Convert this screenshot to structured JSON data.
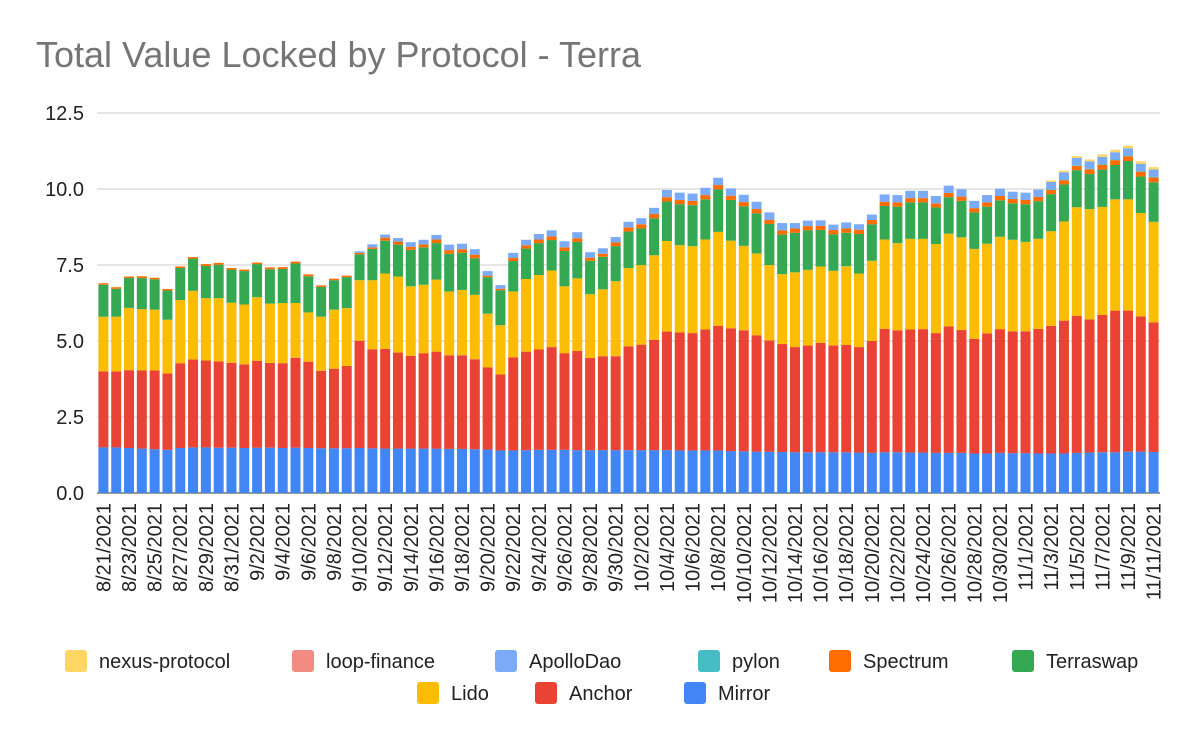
{
  "chart_data": {
    "type": "bar",
    "stacked": true,
    "title": "Total Value Locked by Protocol - Terra",
    "xlabel": "",
    "ylabel": "",
    "ylim": [
      0,
      12.5
    ],
    "yticks": [
      "0.0",
      "2.5",
      "5.0",
      "7.5",
      "10.0",
      "12.5"
    ],
    "grid": true,
    "legend_position": "bottom",
    "categories": [
      "8/21/2021",
      "8/22/2021",
      "8/23/2021",
      "8/24/2021",
      "8/25/2021",
      "8/26/2021",
      "8/27/2021",
      "8/28/2021",
      "8/29/2021",
      "8/30/2021",
      "8/31/2021",
      "9/1/2021",
      "9/2/2021",
      "9/3/2021",
      "9/4/2021",
      "9/5/2021",
      "9/6/2021",
      "9/7/2021",
      "9/8/2021",
      "9/9/2021",
      "9/10/2021",
      "9/11/2021",
      "9/12/2021",
      "9/13/2021",
      "9/14/2021",
      "9/15/2021",
      "9/16/2021",
      "9/17/2021",
      "9/18/2021",
      "9/19/2021",
      "9/20/2021",
      "9/21/2021",
      "9/22/2021",
      "9/23/2021",
      "9/24/2021",
      "9/25/2021",
      "9/26/2021",
      "9/27/2021",
      "9/28/2021",
      "9/29/2021",
      "9/30/2021",
      "10/1/2021",
      "10/2/2021",
      "10/3/2021",
      "10/4/2021",
      "10/5/2021",
      "10/6/2021",
      "10/7/2021",
      "10/8/2021",
      "10/9/2021",
      "10/10/2021",
      "10/11/2021",
      "10/12/2021",
      "10/13/2021",
      "10/14/2021",
      "10/15/2021",
      "10/16/2021",
      "10/17/2021",
      "10/18/2021",
      "10/19/2021",
      "10/20/2021",
      "10/21/2021",
      "10/22/2021",
      "10/23/2021",
      "10/24/2021",
      "10/25/2021",
      "10/26/2021",
      "10/27/2021",
      "10/28/2021",
      "10/29/2021",
      "10/30/2021",
      "10/31/2021",
      "11/1/2021",
      "11/2/2021",
      "11/3/2021",
      "11/4/2021",
      "11/5/2021",
      "11/6/2021",
      "11/7/2021",
      "11/8/2021",
      "11/9/2021",
      "11/10/2021",
      "11/11/2021"
    ],
    "tick_labels": [
      "8/21/2021",
      "8/23/2021",
      "8/25/2021",
      "8/27/2021",
      "8/29/2021",
      "8/31/2021",
      "9/2/2021",
      "9/4/2021",
      "9/6/2021",
      "9/8/2021",
      "9/10/2021",
      "9/12/2021",
      "9/14/2021",
      "9/16/2021",
      "9/18/2021",
      "9/20/2021",
      "9/22/2021",
      "9/24/2021",
      "9/26/2021",
      "9/28/2021",
      "9/30/2021",
      "10/2/2021",
      "10/4/2021",
      "10/6/2021",
      "10/8/2021",
      "10/10/2021",
      "10/12/2021",
      "10/14/2021",
      "10/16/2021",
      "10/18/2021",
      "10/20/2021",
      "10/22/2021",
      "10/24/2021",
      "10/26/2021",
      "10/28/2021",
      "10/30/2021",
      "11/1/2021",
      "11/3/2021",
      "11/5/2021",
      "11/7/2021",
      "11/9/2021",
      "11/11/2021"
    ],
    "series": [
      {
        "name": "Mirror",
        "color": "#4285f4",
        "values": [
          1.5,
          1.5,
          1.48,
          1.46,
          1.44,
          1.42,
          1.48,
          1.5,
          1.5,
          1.49,
          1.49,
          1.48,
          1.49,
          1.49,
          1.48,
          1.49,
          1.48,
          1.47,
          1.47,
          1.47,
          1.48,
          1.47,
          1.46,
          1.46,
          1.46,
          1.46,
          1.46,
          1.45,
          1.45,
          1.44,
          1.43,
          1.4,
          1.4,
          1.41,
          1.42,
          1.42,
          1.42,
          1.41,
          1.41,
          1.41,
          1.41,
          1.41,
          1.41,
          1.41,
          1.41,
          1.4,
          1.4,
          1.4,
          1.4,
          1.38,
          1.37,
          1.36,
          1.36,
          1.35,
          1.34,
          1.34,
          1.34,
          1.34,
          1.34,
          1.33,
          1.32,
          1.34,
          1.34,
          1.33,
          1.33,
          1.32,
          1.32,
          1.32,
          1.3,
          1.3,
          1.32,
          1.31,
          1.31,
          1.3,
          1.3,
          1.3,
          1.32,
          1.33,
          1.34,
          1.34,
          1.36,
          1.36,
          1.35
        ]
      },
      {
        "name": "Anchor",
        "color": "#ea4335",
        "values": [
          2.5,
          2.5,
          2.56,
          2.57,
          2.59,
          2.51,
          2.79,
          2.89,
          2.86,
          2.84,
          2.79,
          2.75,
          2.86,
          2.79,
          2.79,
          2.96,
          2.84,
          2.55,
          2.62,
          2.71,
          3.53,
          3.26,
          3.28,
          3.16,
          3.05,
          3.14,
          3.19,
          3.08,
          3.08,
          2.96,
          2.7,
          2.5,
          3.06,
          3.24,
          3.3,
          3.38,
          3.18,
          3.26,
          3.03,
          3.09,
          3.09,
          3.41,
          3.47,
          3.63,
          3.9,
          3.88,
          3.86,
          3.98,
          4.1,
          4.04,
          3.98,
          3.83,
          3.66,
          3.55,
          3.46,
          3.51,
          3.6,
          3.51,
          3.53,
          3.47,
          3.68,
          4.06,
          4.01,
          4.05,
          4.06,
          3.94,
          4.16,
          4.04,
          3.77,
          3.95,
          4.07,
          4.01,
          4.01,
          4.1,
          4.2,
          4.37,
          4.51,
          4.38,
          4.52,
          4.66,
          4.64,
          4.45,
          4.26
        ]
      },
      {
        "name": "Lido",
        "color": "#fbbc04",
        "values": [
          1.8,
          1.8,
          2.05,
          2.02,
          2.0,
          1.77,
          2.08,
          2.26,
          2.05,
          2.08,
          1.98,
          1.97,
          2.09,
          1.95,
          1.98,
          1.8,
          1.62,
          1.78,
          1.94,
          1.9,
          1.99,
          2.27,
          2.48,
          2.5,
          2.29,
          2.25,
          2.37,
          2.1,
          2.15,
          2.12,
          1.77,
          1.62,
          2.17,
          2.39,
          2.45,
          2.52,
          2.2,
          2.39,
          2.1,
          2.2,
          2.47,
          2.58,
          2.62,
          2.78,
          2.98,
          2.87,
          2.86,
          2.96,
          3.09,
          2.88,
          2.78,
          2.69,
          2.48,
          2.3,
          2.46,
          2.49,
          2.51,
          2.46,
          2.59,
          2.42,
          2.64,
          2.94,
          2.87,
          2.98,
          2.97,
          2.93,
          3.05,
          3.05,
          2.96,
          2.95,
          3.04,
          3.01,
          2.94,
          2.96,
          3.11,
          3.26,
          3.57,
          3.63,
          3.55,
          3.66,
          3.66,
          3.4,
          3.31
        ]
      },
      {
        "name": "Terraswap",
        "color": "#34a853",
        "values": [
          1.05,
          0.92,
          0.98,
          1.02,
          1.0,
          0.96,
          1.05,
          1.06,
          1.06,
          1.1,
          1.09,
          1.1,
          1.09,
          1.13,
          1.12,
          1.3,
          1.19,
          0.98,
          0.97,
          1.02,
          0.85,
          1.03,
          1.08,
          1.05,
          1.2,
          1.23,
          1.2,
          1.24,
          1.22,
          1.2,
          1.2,
          1.15,
          1.0,
          1.0,
          1.05,
          1.0,
          1.16,
          1.2,
          1.1,
          1.07,
          1.15,
          1.2,
          1.2,
          1.22,
          1.3,
          1.35,
          1.35,
          1.32,
          1.4,
          1.34,
          1.3,
          1.32,
          1.35,
          1.3,
          1.3,
          1.3,
          1.2,
          1.2,
          1.1,
          1.3,
          1.2,
          1.1,
          1.2,
          1.2,
          1.2,
          1.2,
          1.2,
          1.2,
          1.2,
          1.22,
          1.2,
          1.2,
          1.24,
          1.24,
          1.22,
          1.22,
          1.22,
          1.15,
          1.23,
          1.13,
          1.26,
          1.2,
          1.3
        ]
      },
      {
        "name": "Spectrum",
        "color": "#ff6d01",
        "values": [
          0.05,
          0.05,
          0.05,
          0.06,
          0.05,
          0.05,
          0.05,
          0.05,
          0.06,
          0.06,
          0.05,
          0.05,
          0.05,
          0.06,
          0.06,
          0.06,
          0.06,
          0.05,
          0.05,
          0.05,
          0.05,
          0.05,
          0.1,
          0.1,
          0.1,
          0.1,
          0.12,
          0.12,
          0.12,
          0.12,
          0.05,
          0.05,
          0.1,
          0.11,
          0.12,
          0.12,
          0.12,
          0.12,
          0.1,
          0.1,
          0.12,
          0.14,
          0.14,
          0.14,
          0.14,
          0.14,
          0.14,
          0.14,
          0.14,
          0.14,
          0.14,
          0.14,
          0.14,
          0.14,
          0.14,
          0.14,
          0.14,
          0.14,
          0.14,
          0.14,
          0.14,
          0.14,
          0.14,
          0.14,
          0.14,
          0.14,
          0.14,
          0.14,
          0.14,
          0.14,
          0.14,
          0.14,
          0.14,
          0.14,
          0.14,
          0.14,
          0.14,
          0.16,
          0.16,
          0.16,
          0.16,
          0.16,
          0.16
        ]
      },
      {
        "name": "pylon",
        "color": "#46bdc6",
        "values": [
          0,
          0,
          0,
          0,
          0,
          0,
          0,
          0,
          0,
          0,
          0,
          0,
          0,
          0,
          0,
          0,
          0,
          0,
          0,
          0,
          0,
          0,
          0,
          0,
          0,
          0,
          0,
          0,
          0,
          0,
          0,
          0,
          0,
          0,
          0,
          0,
          0,
          0,
          0,
          0,
          0,
          0,
          0,
          0,
          0,
          0,
          0,
          0,
          0,
          0,
          0,
          0,
          0,
          0,
          0,
          0,
          0,
          0,
          0,
          0,
          0,
          0,
          0,
          0,
          0,
          0,
          0,
          0,
          0,
          0,
          0,
          0,
          0,
          0,
          0.02,
          0.02,
          0.02,
          0.02,
          0.02,
          0.02,
          0.02,
          0.02,
          0.02
        ]
      },
      {
        "name": "ApolloDao",
        "color": "#7baaf7",
        "values": [
          0,
          0,
          0,
          0,
          0,
          0,
          0,
          0,
          0,
          0,
          0,
          0,
          0,
          0,
          0,
          0,
          0,
          0,
          0,
          0,
          0.05,
          0.1,
          0.1,
          0.12,
          0.15,
          0.15,
          0.15,
          0.18,
          0.18,
          0.18,
          0.15,
          0.12,
          0.17,
          0.18,
          0.18,
          0.2,
          0.2,
          0.2,
          0.18,
          0.18,
          0.18,
          0.18,
          0.2,
          0.2,
          0.24,
          0.24,
          0.24,
          0.24,
          0.24,
          0.24,
          0.24,
          0.24,
          0.24,
          0.24,
          0.18,
          0.18,
          0.18,
          0.18,
          0.2,
          0.18,
          0.18,
          0.24,
          0.24,
          0.24,
          0.24,
          0.24,
          0.24,
          0.24,
          0.24,
          0.24,
          0.24,
          0.24,
          0.24,
          0.24,
          0.24,
          0.24,
          0.24,
          0.24,
          0.24,
          0.24,
          0.24,
          0.24,
          0.24
        ]
      },
      {
        "name": "loop-finance",
        "color": "#f28b82",
        "values": [
          0,
          0,
          0,
          0,
          0,
          0,
          0,
          0,
          0,
          0,
          0,
          0,
          0,
          0,
          0,
          0,
          0,
          0,
          0,
          0,
          0,
          0,
          0,
          0,
          0,
          0,
          0,
          0,
          0,
          0,
          0,
          0,
          0,
          0,
          0,
          0,
          0,
          0,
          0,
          0,
          0,
          0,
          0,
          0,
          0,
          0,
          0,
          0,
          0,
          0,
          0,
          0,
          0,
          0,
          0,
          0,
          0,
          0,
          0,
          0,
          0,
          0,
          0,
          0,
          0,
          0,
          0,
          0,
          0,
          0,
          0,
          0,
          0,
          0,
          0,
          0,
          0,
          0,
          0,
          0,
          0,
          0,
          0
        ]
      },
      {
        "name": "nexus-protocol",
        "color": "#fdd663",
        "values": [
          0,
          0,
          0,
          0,
          0,
          0,
          0,
          0,
          0,
          0,
          0,
          0,
          0,
          0,
          0,
          0,
          0,
          0,
          0,
          0,
          0,
          0,
          0,
          0,
          0,
          0,
          0,
          0,
          0,
          0,
          0,
          0,
          0,
          0,
          0,
          0,
          0,
          0,
          0,
          0,
          0,
          0,
          0,
          0,
          0,
          0,
          0,
          0,
          0,
          0,
          0,
          0,
          0,
          0,
          0,
          0,
          0,
          0,
          0,
          0,
          0,
          0,
          0,
          0,
          0,
          0,
          0,
          0,
          0,
          0,
          0,
          0,
          0,
          0,
          0.05,
          0.05,
          0.06,
          0.06,
          0.08,
          0.08,
          0.08,
          0.08,
          0.08
        ]
      }
    ],
    "legend_rows": [
      [
        "nexus-protocol",
        "loop-finance",
        "ApolloDao",
        "pylon",
        "Spectrum",
        "Terraswap"
      ],
      [
        "Lido",
        "Anchor",
        "Mirror"
      ]
    ]
  }
}
